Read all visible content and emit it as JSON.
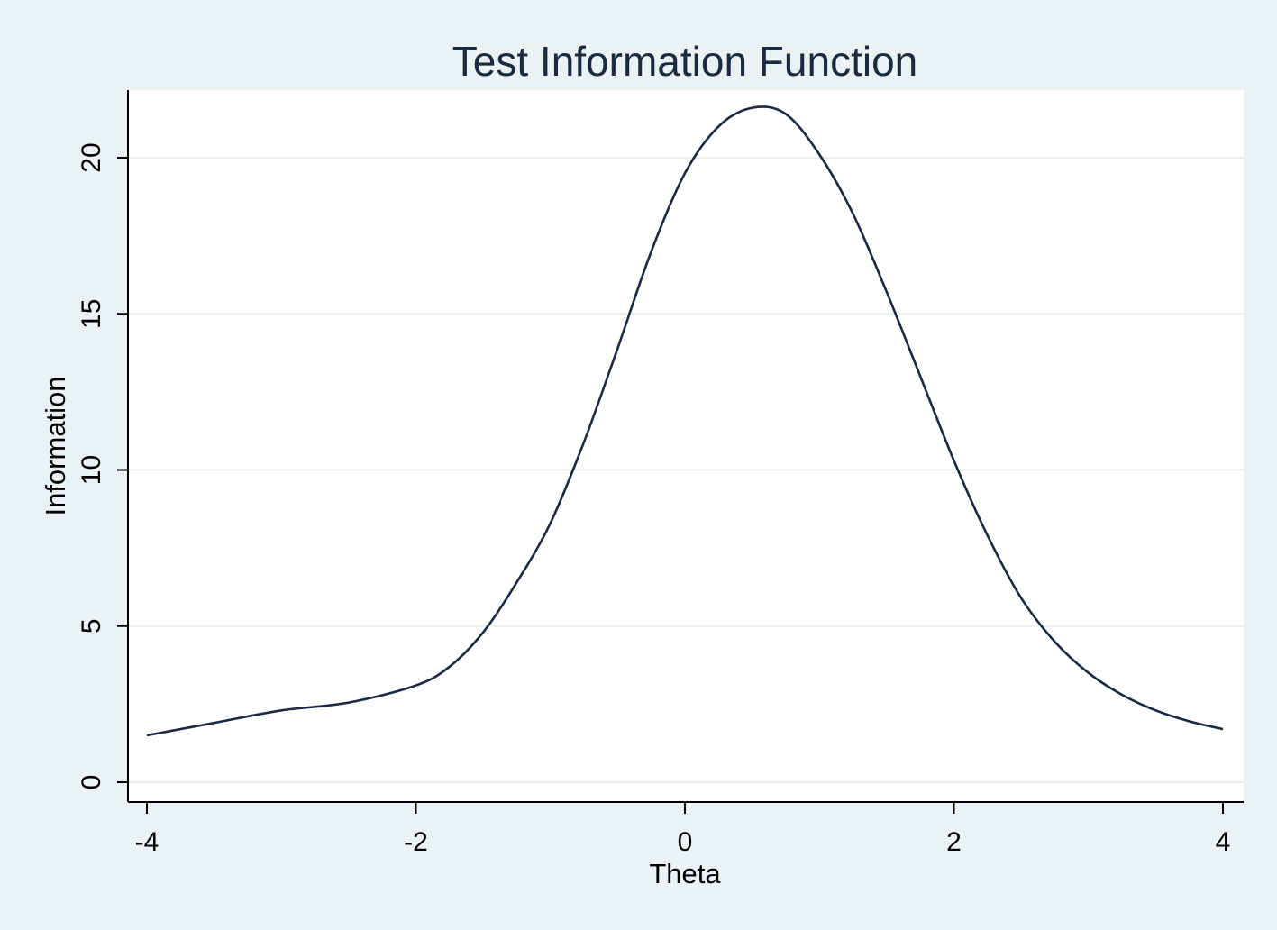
{
  "chart_data": {
    "type": "line",
    "title": "Test Information Function",
    "xlabel": "Theta",
    "ylabel": "Information",
    "xlim": [
      -4,
      4
    ],
    "ylim": [
      0,
      22
    ],
    "xticks": [
      "-4",
      "-2",
      "0",
      "2",
      "4"
    ],
    "yticks": [
      "0",
      "5",
      "10",
      "15",
      "20"
    ],
    "grid": "horizontal",
    "colors": {
      "background": "#eaf2f3",
      "plot": "#ffffff",
      "line": "#1a2a40",
      "grid": "#e7eeee"
    },
    "series": [
      {
        "x": [
          -4.0,
          -3.5,
          -3.0,
          -2.5,
          -2.0,
          -1.75,
          -1.5,
          -1.25,
          -1.0,
          -0.75,
          -0.5,
          -0.25,
          0.0,
          0.25,
          0.5,
          0.75,
          1.0,
          1.25,
          1.5,
          1.75,
          2.0,
          2.25,
          2.5,
          2.75,
          3.0,
          3.25,
          3.5,
          3.75,
          4.0
        ],
        "values": [
          1.5,
          1.9,
          2.3,
          2.55,
          3.1,
          3.7,
          4.8,
          6.4,
          8.3,
          10.9,
          13.9,
          17.0,
          19.5,
          21.0,
          21.6,
          21.4,
          20.1,
          18.2,
          15.7,
          13.0,
          10.3,
          7.9,
          5.9,
          4.5,
          3.5,
          2.8,
          2.3,
          1.95,
          1.7
        ]
      }
    ]
  }
}
